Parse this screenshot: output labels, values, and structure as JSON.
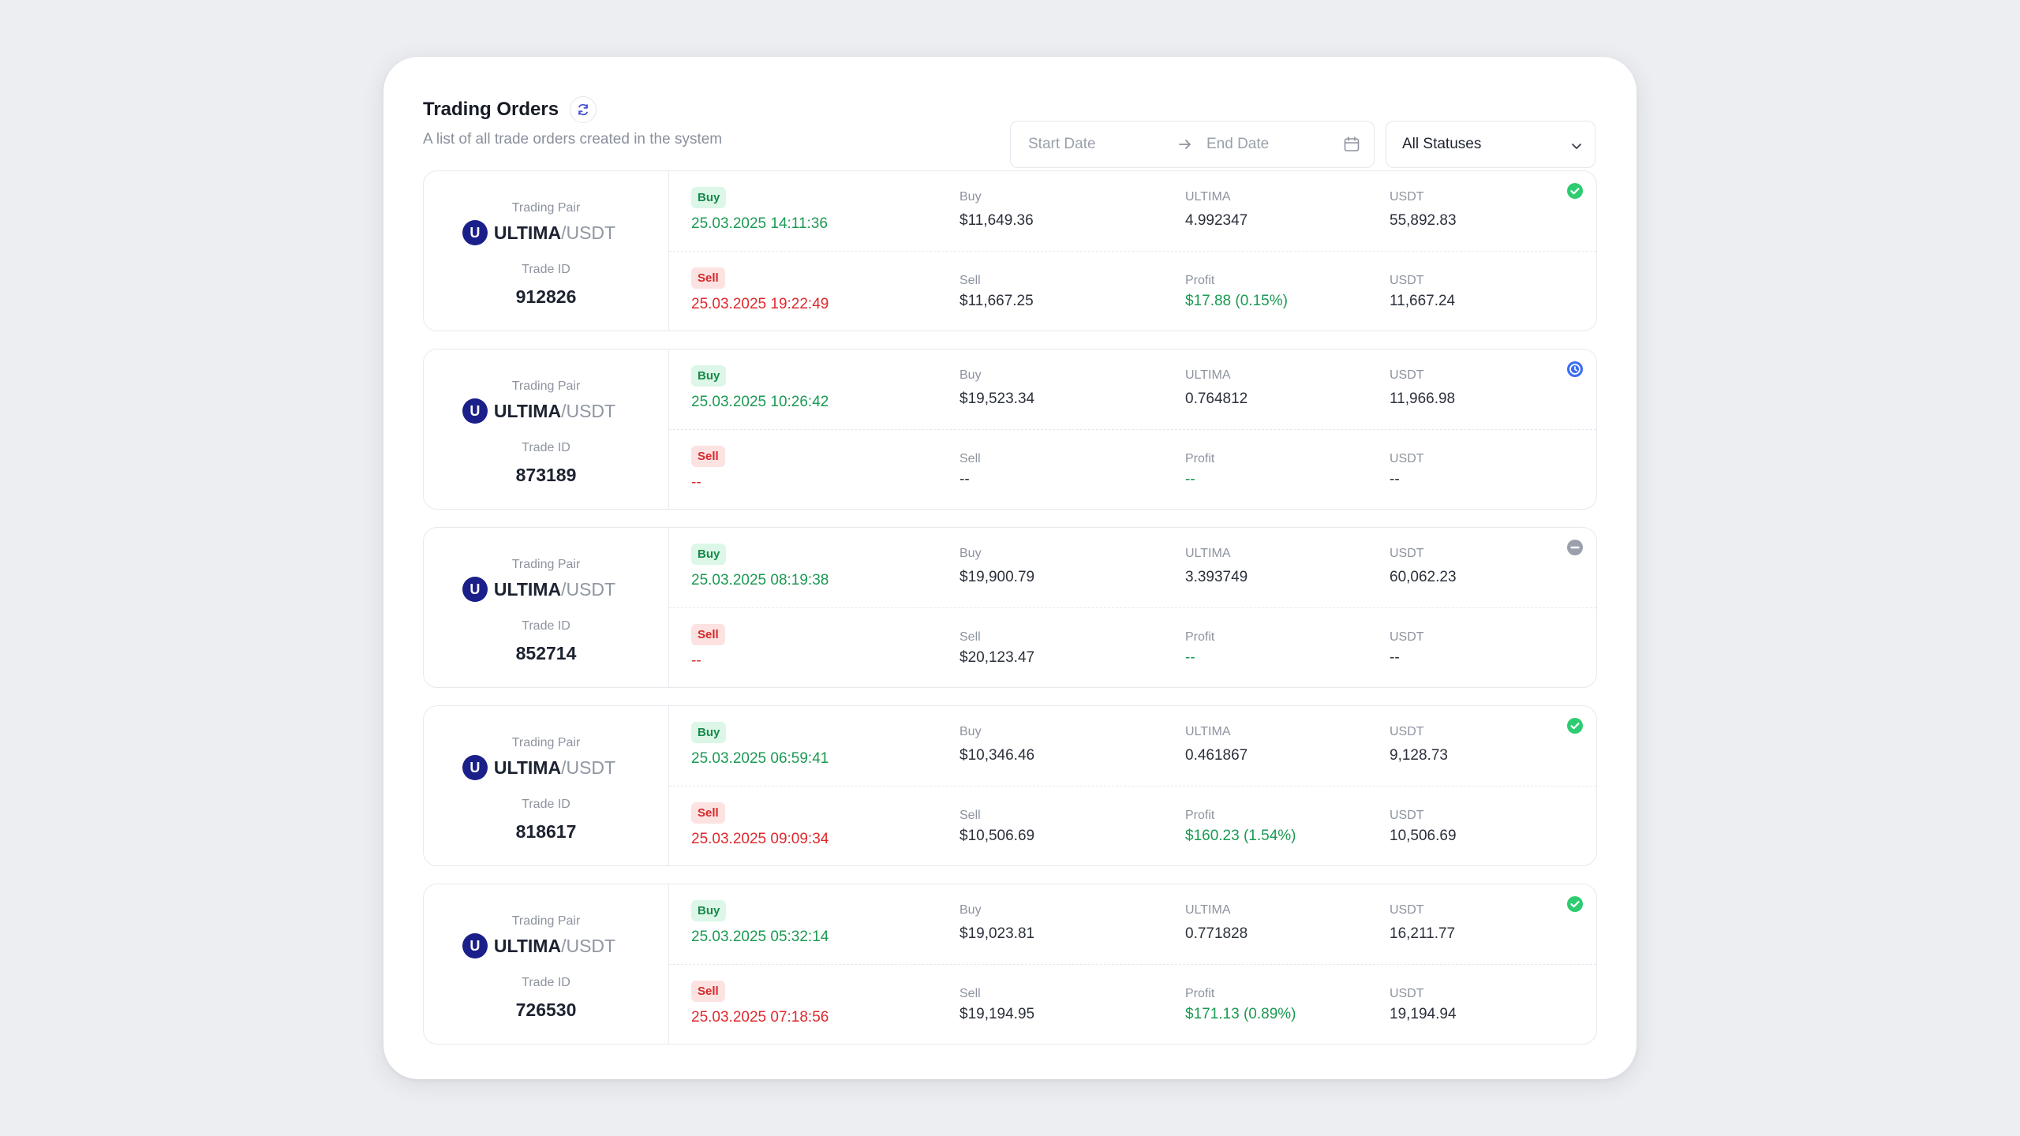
{
  "header": {
    "title": "Trading Orders",
    "subtitle": "A list of all trade orders created in the system"
  },
  "filters": {
    "start_placeholder": "Start Date",
    "end_placeholder": "End Date",
    "status_value": "All Statuses"
  },
  "labels": {
    "trading_pair": "Trading Pair",
    "trade_id": "Trade ID",
    "buy_badge": "Buy",
    "sell_badge": "Sell",
    "buy": "Buy",
    "sell": "Sell",
    "base": "ULTIMA",
    "profit": "Profit",
    "quote": "USDT"
  },
  "colors": {
    "buy_green": "#1a9a52",
    "sell_red": "#e0282c",
    "status_done": "#2ecc71",
    "status_active": "#3b6ef5",
    "status_cancelled": "#9aa0ab"
  },
  "orders": [
    {
      "pair_base": "ULTIMA",
      "pair_quote": "/USDT",
      "logo_letter": "U",
      "trade_id": "912826",
      "status_icon": "check-circle-icon",
      "buy_time": "25.03.2025 14:11:36",
      "buy_price": "$11,649.36",
      "base_amount": "4.992347",
      "buy_usdt": "55,892.83",
      "sell_time": "25.03.2025 19:22:49",
      "sell_price": "$11,667.25",
      "profit": "$17.88 (0.15%)",
      "sell_usdt": "11,667.24"
    },
    {
      "pair_base": "ULTIMA",
      "pair_quote": "/USDT",
      "logo_letter": "U",
      "trade_id": "873189",
      "status_icon": "clock-circle-icon",
      "buy_time": "25.03.2025 10:26:42",
      "buy_price": "$19,523.34",
      "base_amount": "0.764812",
      "buy_usdt": "11,966.98",
      "sell_time": "--",
      "sell_price": "--",
      "profit": "--",
      "sell_usdt": "--"
    },
    {
      "pair_base": "ULTIMA",
      "pair_quote": "/USDT",
      "logo_letter": "U",
      "trade_id": "852714",
      "status_icon": "minus-circle-icon",
      "buy_time": "25.03.2025 08:19:38",
      "buy_price": "$19,900.79",
      "base_amount": "3.393749",
      "buy_usdt": "60,062.23",
      "sell_time": "--",
      "sell_price": "$20,123.47",
      "profit": "--",
      "sell_usdt": "--"
    },
    {
      "pair_base": "ULTIMA",
      "pair_quote": "/USDT",
      "logo_letter": "U",
      "trade_id": "818617",
      "status_icon": "check-circle-icon",
      "buy_time": "25.03.2025 06:59:41",
      "buy_price": "$10,346.46",
      "base_amount": "0.461867",
      "buy_usdt": "9,128.73",
      "sell_time": "25.03.2025 09:09:34",
      "sell_price": "$10,506.69",
      "profit": "$160.23 (1.54%)",
      "sell_usdt": "10,506.69"
    },
    {
      "pair_base": "ULTIMA",
      "pair_quote": "/USDT",
      "logo_letter": "U",
      "trade_id": "726530",
      "status_icon": "check-circle-icon",
      "buy_time": "25.03.2025 05:32:14",
      "buy_price": "$19,023.81",
      "base_amount": "0.771828",
      "buy_usdt": "16,211.77",
      "sell_time": "25.03.2025 07:18:56",
      "sell_price": "$19,194.95",
      "profit": "$171.13 (0.89%)",
      "sell_usdt": "19,194.94"
    }
  ]
}
